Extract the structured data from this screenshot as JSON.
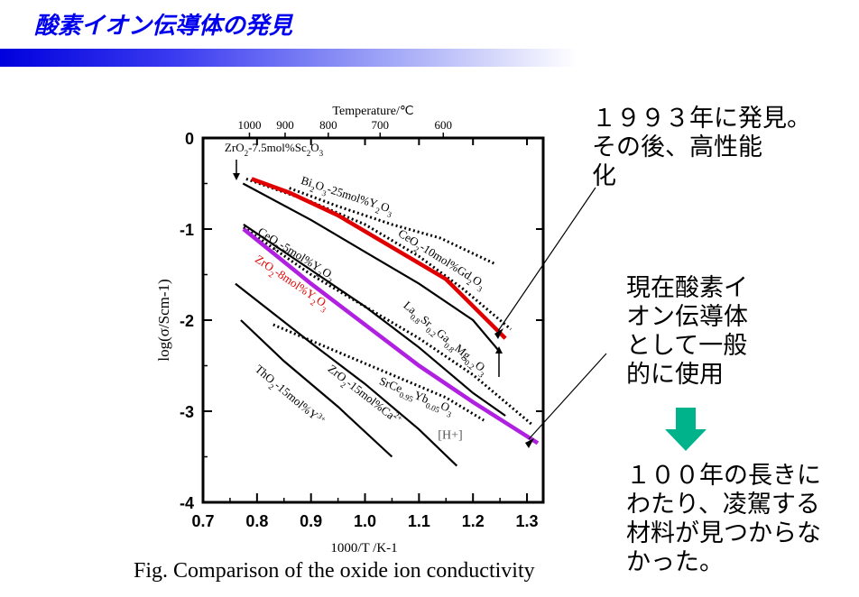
{
  "slide": {
    "title": "酸素イオン伝導体の発見",
    "caption": "Fig. Comparison of the oxide ion conductivity",
    "note1": "１９９３年に発見。\nその後、高性能\n化",
    "note2": "現在酸素イ\nオン伝導体\nとして一般\n的に使用",
    "note3": "１００年の長きに\nわたり、凌駕する\n材料が見つからな\nかった。",
    "colors": {
      "title": "#0000ee",
      "red_series": "#e00000",
      "purple_series": "#b020e0",
      "arrow": "#00b38a"
    }
  },
  "chart_data": {
    "type": "line",
    "xlabel": "1000/T /K-1",
    "ylabel": "log(σ/Scm-1)",
    "top_axis_label": "Temperature/℃",
    "xlim": [
      0.7,
      1.33
    ],
    "ylim": [
      -4,
      0
    ],
    "x_ticks": [
      "0.7",
      "0.8",
      "0.9",
      "1.0",
      "1.1",
      "1.2",
      "1.3"
    ],
    "y_ticks": [
      "0",
      "-1",
      "-2",
      "-3",
      "-4"
    ],
    "top_ticks": [
      {
        "label": "1000",
        "x": 0.786
      },
      {
        "label": "900",
        "x": 0.852
      },
      {
        "label": "800",
        "x": 0.932
      },
      {
        "label": "700",
        "x": 1.028
      },
      {
        "label": "600",
        "x": 1.145
      }
    ],
    "series": [
      {
        "name": "Bi2O3-25mol%Y2O3",
        "label_main": "Bi",
        "label_rest": [
          [
            "2",
            "sub"
          ],
          [
            "O",
            ""
          ],
          [
            "3",
            "sub"
          ],
          [
            "-25mol%Y",
            ""
          ],
          [
            "2",
            "sub"
          ],
          [
            "O",
            ""
          ],
          [
            "3",
            "sub"
          ]
        ],
        "style": "dotted",
        "color": "#000000",
        "label_x": 0.88,
        "label_y": -0.5,
        "label_angle": 18,
        "points": [
          [
            0.86,
            -0.55
          ],
          [
            0.95,
            -0.75
          ],
          [
            1.05,
            -0.95
          ],
          [
            1.14,
            -1.1
          ],
          [
            1.24,
            -1.38
          ]
        ]
      },
      {
        "name": "CeO2-10mol%Gd2O3",
        "label_main": "CeO",
        "label_rest": [
          [
            "2",
            "sub"
          ],
          [
            "-10mol%Gd",
            ""
          ],
          [
            "2",
            "sub"
          ],
          [
            "O",
            ""
          ],
          [
            "3",
            "sub"
          ]
        ],
        "style": "dotted",
        "color": "#000000",
        "label_x": 1.06,
        "label_y": -1.07,
        "label_angle": 32,
        "points": [
          [
            0.78,
            -0.45
          ],
          [
            0.9,
            -0.7
          ],
          [
            1.0,
            -0.95
          ],
          [
            1.1,
            -1.3
          ],
          [
            1.18,
            -1.65
          ],
          [
            1.27,
            -2.1
          ]
        ]
      },
      {
        "name": "ZrO2-7.5mol%Sc2O3",
        "label_main": "ZrO",
        "label_rest": [
          [
            "2",
            "sub"
          ],
          [
            "-7.5mol%Sc",
            ""
          ],
          [
            "2",
            "sub"
          ],
          [
            "O",
            ""
          ],
          [
            "3",
            "sub"
          ]
        ],
        "style": "solid",
        "color": "#000000",
        "label_x": 0.74,
        "label_y": -0.15,
        "label_angle": 0,
        "points": [
          [
            0.774,
            -0.5
          ],
          [
            0.9,
            -0.9
          ],
          [
            1.0,
            -1.25
          ],
          [
            1.1,
            -1.6
          ],
          [
            1.2,
            -2.0
          ],
          [
            1.25,
            -2.35
          ]
        ]
      },
      {
        "name": "red-highlight",
        "style": "solid-thick",
        "color": "#e00000",
        "points": [
          [
            0.79,
            -0.45
          ],
          [
            0.86,
            -0.6
          ],
          [
            0.95,
            -0.85
          ],
          [
            1.05,
            -1.2
          ],
          [
            1.15,
            -1.55
          ],
          [
            1.26,
            -2.2
          ]
        ]
      },
      {
        "name": "CeO2-5mol%Y2O3",
        "label_main": "CeO",
        "label_rest": [
          [
            "2",
            "sub"
          ],
          [
            "-5mol%Y",
            ""
          ],
          [
            "2",
            "sub"
          ],
          [
            "O",
            ""
          ],
          [
            "3",
            "sub"
          ]
        ],
        "style": "dotted",
        "color": "#000000",
        "label_x": 0.8,
        "label_y": -1.05,
        "label_angle": 32,
        "points": [
          [
            0.775,
            -0.98
          ],
          [
            0.9,
            -1.5
          ],
          [
            1.0,
            -1.85
          ],
          [
            1.1,
            -2.2
          ],
          [
            1.2,
            -2.6
          ],
          [
            1.31,
            -3.15
          ]
        ]
      },
      {
        "name": "ZrO2-8mol%Y2O3",
        "label_main": "ZrO",
        "label_rest": [
          [
            "2",
            "sub"
          ],
          [
            "-8mol%Y",
            ""
          ],
          [
            "2",
            "sub"
          ],
          [
            "O",
            ""
          ],
          [
            "3",
            "sub"
          ]
        ],
        "style": "solid-thick",
        "color": "#b020e0",
        "label_x": 0.795,
        "label_y": -1.35,
        "label_angle": 34,
        "label_color": "#e00000",
        "points": [
          [
            0.775,
            -1.0
          ],
          [
            0.9,
            -1.6
          ],
          [
            1.0,
            -2.05
          ],
          [
            1.1,
            -2.5
          ],
          [
            1.2,
            -2.9
          ],
          [
            1.32,
            -3.35
          ]
        ]
      },
      {
        "name": "La0.8Sr0.2Ga0.8Mg0.2O3",
        "label_main": "La",
        "label_rest": [
          [
            "0.8",
            "sub"
          ],
          [
            "Sr",
            ""
          ],
          [
            "0.2",
            "sub"
          ],
          [
            "Ga",
            ""
          ],
          [
            "0.8",
            "sub"
          ],
          [
            "Mg",
            ""
          ],
          [
            "0.2",
            "sub"
          ],
          [
            "O",
            ""
          ],
          [
            "3",
            "sub"
          ]
        ],
        "style": "solid",
        "color": "#000000",
        "label_x": 1.07,
        "label_y": -1.85,
        "label_angle": 40,
        "points": [
          [
            0.775,
            -0.95
          ],
          [
            0.9,
            -1.45
          ],
          [
            1.0,
            -1.85
          ],
          [
            1.1,
            -2.3
          ],
          [
            1.2,
            -2.8
          ],
          [
            1.26,
            -3.05
          ]
        ]
      },
      {
        "name": "SrCe0.95Yb0.05O3 [H+]",
        "label_main": "SrCe",
        "label_rest": [
          [
            "0.95",
            "sub"
          ],
          [
            "Yb",
            ""
          ],
          [
            "0.05",
            "sub"
          ],
          [
            "O",
            ""
          ],
          [
            "3",
            "sub"
          ]
        ],
        "style": "dotted",
        "color": "#000000",
        "label_x": 1.025,
        "label_y": -2.7,
        "label_angle": 22,
        "extra_label": "[H+]",
        "extra_x": 1.135,
        "extra_y": -3.3,
        "points": [
          [
            0.83,
            -2.05
          ],
          [
            0.95,
            -2.35
          ],
          [
            1.05,
            -2.6
          ],
          [
            1.15,
            -2.85
          ],
          [
            1.22,
            -3.1
          ]
        ]
      },
      {
        "name": "ZrO2-15mol%Ca2+",
        "label_main": "ZrO",
        "label_rest": [
          [
            "2",
            "sub"
          ],
          [
            "-15mol%Ca",
            ""
          ],
          [
            "2+",
            "sup"
          ]
        ],
        "style": "solid",
        "color": "#000000",
        "label_x": 0.93,
        "label_y": -2.55,
        "label_angle": 38,
        "points": [
          [
            0.76,
            -1.6
          ],
          [
            0.9,
            -2.25
          ],
          [
            1.0,
            -2.7
          ],
          [
            1.1,
            -3.2
          ],
          [
            1.17,
            -3.6
          ]
        ]
      },
      {
        "name": "ThO2-15mol%Y3+",
        "label_main": "ThO",
        "label_rest": [
          [
            "2",
            "sub"
          ],
          [
            "-15mol%Y",
            ""
          ],
          [
            "3+",
            "sup"
          ]
        ],
        "style": "solid",
        "color": "#000000",
        "label_x": 0.795,
        "label_y": -2.55,
        "label_angle": 40,
        "points": [
          [
            0.77,
            -2.0
          ],
          [
            0.85,
            -2.45
          ],
          [
            0.95,
            -2.95
          ],
          [
            1.05,
            -3.5
          ]
        ]
      }
    ]
  }
}
